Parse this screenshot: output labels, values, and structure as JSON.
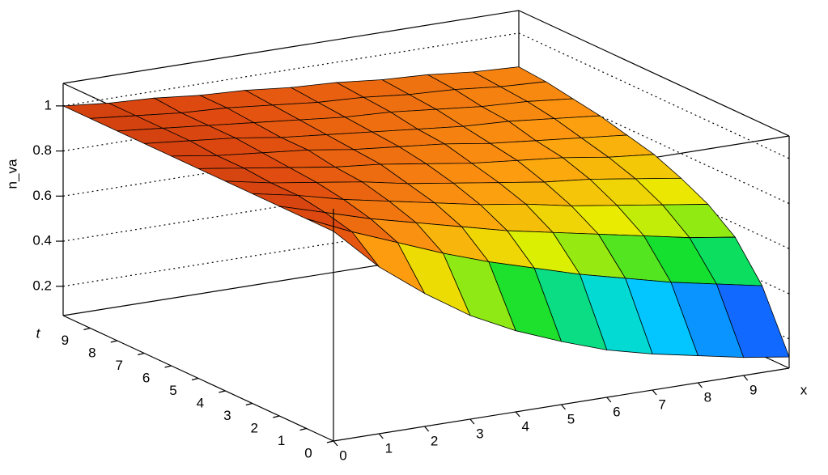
{
  "chart_data": {
    "type": "surface",
    "x_label": "x",
    "y_label": "t",
    "z_label": "n_va",
    "x": [
      0,
      1,
      2,
      3,
      4,
      5,
      6,
      7,
      8,
      9,
      10
    ],
    "y": [
      0,
      1,
      2,
      3,
      4,
      5,
      6,
      7,
      8,
      9,
      10
    ],
    "z": [
      [
        1,
        0.81,
        0.66,
        0.53,
        0.43,
        0.35,
        0.28,
        0.23,
        0.19,
        0.15,
        0.12
      ],
      [
        1,
        0.91,
        0.83,
        0.75,
        0.68,
        0.62,
        0.56,
        0.51,
        0.46,
        0.42,
        0.38
      ],
      [
        1,
        0.94,
        0.88,
        0.83,
        0.78,
        0.73,
        0.69,
        0.65,
        0.61,
        0.57,
        0.54
      ],
      [
        1,
        0.96,
        0.91,
        0.87,
        0.83,
        0.79,
        0.76,
        0.72,
        0.69,
        0.66,
        0.63
      ],
      [
        1,
        0.96,
        0.93,
        0.9,
        0.86,
        0.83,
        0.8,
        0.77,
        0.75,
        0.72,
        0.69
      ],
      [
        1,
        0.97,
        0.94,
        0.91,
        0.89,
        0.86,
        0.83,
        0.81,
        0.79,
        0.76,
        0.74
      ],
      [
        1,
        0.97,
        0.95,
        0.93,
        0.9,
        0.88,
        0.86,
        0.83,
        0.81,
        0.79,
        0.77
      ],
      [
        1,
        0.98,
        0.96,
        0.93,
        0.91,
        0.89,
        0.87,
        0.85,
        0.84,
        0.82,
        0.8
      ],
      [
        1,
        0.98,
        0.96,
        0.94,
        0.92,
        0.9,
        0.89,
        0.87,
        0.85,
        0.84,
        0.82
      ],
      [
        1,
        0.98,
        0.96,
        0.95,
        0.93,
        0.91,
        0.9,
        0.88,
        0.87,
        0.85,
        0.84
      ],
      [
        1,
        0.98,
        0.97,
        0.95,
        0.94,
        0.92,
        0.91,
        0.89,
        0.88,
        0.86,
        0.85
      ]
    ],
    "xlim": [
      0,
      10
    ],
    "ylim": [
      0,
      10
    ],
    "zlim": [
      0.07,
      1.1
    ],
    "xticks": [
      0,
      1,
      2,
      3,
      4,
      5,
      6,
      7,
      8,
      9
    ],
    "yticks": [
      0,
      1,
      2,
      3,
      4,
      5,
      6,
      7,
      8,
      9
    ],
    "zticks": [
      0.2,
      0.4,
      0.6,
      0.8,
      1
    ],
    "grid": true,
    "colormap": [
      "#6a10d8",
      "#1a30ff",
      "#00d8ff",
      "#10e030",
      "#e8f000",
      "#ff9a10",
      "#e04a10",
      "#b02a0e"
    ]
  }
}
